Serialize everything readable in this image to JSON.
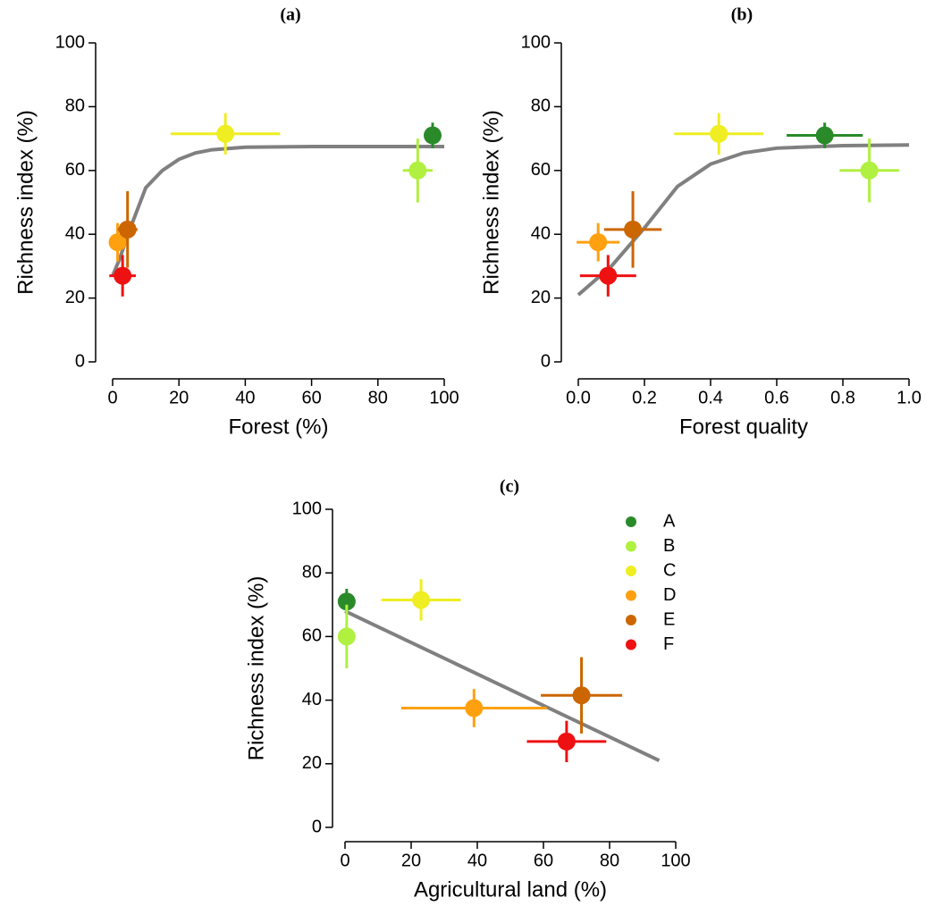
{
  "chart_data": [
    {
      "type": "scatter",
      "title": "(a)",
      "xlabel": "Forest (%)",
      "ylabel": "Richness index (%)",
      "xlim": [
        0,
        100
      ],
      "ylim": [
        0,
        100
      ],
      "xticks": [
        0,
        20,
        40,
        60,
        80,
        100
      ],
      "yticks": [
        0,
        20,
        40,
        60,
        80,
        100
      ],
      "series": [
        {
          "color": "#2a8a2a",
          "x": [
            96.5
          ],
          "values": [
            71
          ],
          "xerr": [
            2.5
          ],
          "yerr": [
            4
          ]
        },
        {
          "color": "#b0f040",
          "x": [
            92
          ],
          "values": [
            60
          ],
          "xerr": [
            4.5
          ],
          "yerr": [
            10
          ]
        },
        {
          "color": "#eeee22",
          "x": [
            34
          ],
          "values": [
            71.5
          ],
          "xerr": [
            16.5
          ],
          "yerr": [
            6.5
          ]
        },
        {
          "color": "#ffa010",
          "x": [
            1.5
          ],
          "values": [
            37.5
          ],
          "xerr": [
            2
          ],
          "yerr": [
            6
          ]
        },
        {
          "color": "#cc6600",
          "x": [
            4.5
          ],
          "values": [
            41.5
          ],
          "xerr": [
            3
          ],
          "yerr": [
            12
          ]
        },
        {
          "color": "#ee1111",
          "x": [
            3
          ],
          "values": [
            27
          ],
          "xerr": [
            4
          ],
          "yerr": [
            6.5
          ]
        }
      ],
      "fit": {
        "color": "#808080",
        "x": [
          0,
          2,
          5,
          10,
          15,
          20,
          25,
          30,
          40,
          60,
          80,
          100
        ],
        "values": [
          27,
          32,
          41,
          54.6,
          60,
          63.5,
          65.5,
          66.5,
          67.3,
          67.5,
          67.5,
          67.5
        ]
      }
    },
    {
      "type": "scatter",
      "title": "(b)",
      "xlabel": "Forest quality",
      "ylabel": "Richness index (%)",
      "xlim": [
        0,
        1
      ],
      "ylim": [
        0,
        100
      ],
      "xticks": [
        {
          "value": 0,
          "label": "0.0"
        },
        0.2,
        0.4,
        0.6,
        0.8,
        {
          "value": 1,
          "label": "1.0"
        }
      ],
      "yticks": [
        0,
        20,
        40,
        60,
        80,
        100
      ],
      "series": [
        {
          "color": "#2a8a2a",
          "x": [
            0.745
          ],
          "values": [
            71
          ],
          "xerr": [
            0.115
          ],
          "yerr": [
            4
          ]
        },
        {
          "color": "#b0f040",
          "x": [
            0.88
          ],
          "values": [
            60
          ],
          "xerr": [
            0.09
          ],
          "yerr": [
            10
          ]
        },
        {
          "color": "#eeee22",
          "x": [
            0.425
          ],
          "values": [
            71.5
          ],
          "xerr": [
            0.135
          ],
          "yerr": [
            6.5
          ]
        },
        {
          "color": "#ffa010",
          "x": [
            0.06
          ],
          "values": [
            37.5
          ],
          "xerr": [
            0.065
          ],
          "yerr": [
            6
          ]
        },
        {
          "color": "#cc6600",
          "x": [
            0.165
          ],
          "values": [
            41.5
          ],
          "xerr": [
            0.087
          ],
          "yerr": [
            12
          ]
        },
        {
          "color": "#ee1111",
          "x": [
            0.09
          ],
          "values": [
            27
          ],
          "xerr": [
            0.085
          ],
          "yerr": [
            6.5
          ]
        }
      ],
      "fit": {
        "color": "#808080",
        "x": [
          0,
          0.1,
          0.2,
          0.3,
          0.4,
          0.5,
          0.6,
          0.8,
          1
        ],
        "values": [
          21,
          30,
          42,
          55,
          62,
          65.5,
          67,
          67.8,
          68
        ]
      }
    },
    {
      "type": "scatter",
      "title": "(c)",
      "xlabel": "Agricultural land (%)",
      "ylabel": "Richness index (%)",
      "xlim": [
        0,
        100
      ],
      "ylim": [
        0,
        100
      ],
      "xticks": [
        0,
        20,
        40,
        60,
        80,
        100
      ],
      "yticks": [
        0,
        20,
        40,
        60,
        80,
        100
      ],
      "legend": "top-right",
      "series": [
        {
          "name": "A",
          "color": "#2a8a2a",
          "x": [
            0.5
          ],
          "values": [
            71
          ],
          "xerr": [
            1
          ],
          "yerr": [
            4
          ]
        },
        {
          "name": "B",
          "color": "#b0f040",
          "x": [
            0.5
          ],
          "values": [
            60
          ],
          "xerr": [
            1
          ],
          "yerr": [
            10
          ]
        },
        {
          "name": "C",
          "color": "#eeee22",
          "x": [
            23
          ],
          "values": [
            71.5
          ],
          "xerr": [
            12
          ],
          "yerr": [
            6.5
          ]
        },
        {
          "name": "D",
          "color": "#ffa010",
          "x": [
            39
          ],
          "values": [
            37.5
          ],
          "xerr": [
            22
          ],
          "yerr": [
            6
          ]
        },
        {
          "name": "E",
          "color": "#cc6600",
          "x": [
            71.5
          ],
          "values": [
            41.5
          ],
          "xerr": [
            12.3
          ],
          "yerr": [
            12
          ]
        },
        {
          "name": "F",
          "color": "#ee1111",
          "x": [
            67
          ],
          "values": [
            27
          ],
          "xerr": [
            12
          ],
          "yerr": [
            6.5
          ]
        }
      ],
      "fit": {
        "color": "#808080",
        "x": [
          0,
          95
        ],
        "values": [
          68,
          21
        ]
      }
    }
  ]
}
